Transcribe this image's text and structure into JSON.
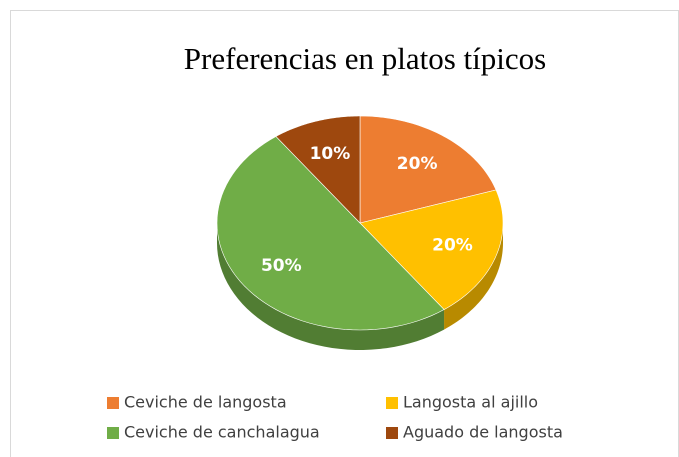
{
  "chart_data": {
    "type": "pie",
    "title": "Preferencias en platos típicos",
    "categories": [
      "Ceviche de langosta",
      "Langosta al ajillo",
      "Ceviche de canchalagua",
      "Aguado de langosta"
    ],
    "values": [
      20,
      20,
      50,
      10
    ],
    "value_labels": [
      "20%",
      "20%",
      "50%",
      "10%"
    ],
    "colors": [
      "#ed7d31",
      "#ffc000",
      "#70ad47",
      "#9e480e"
    ]
  }
}
